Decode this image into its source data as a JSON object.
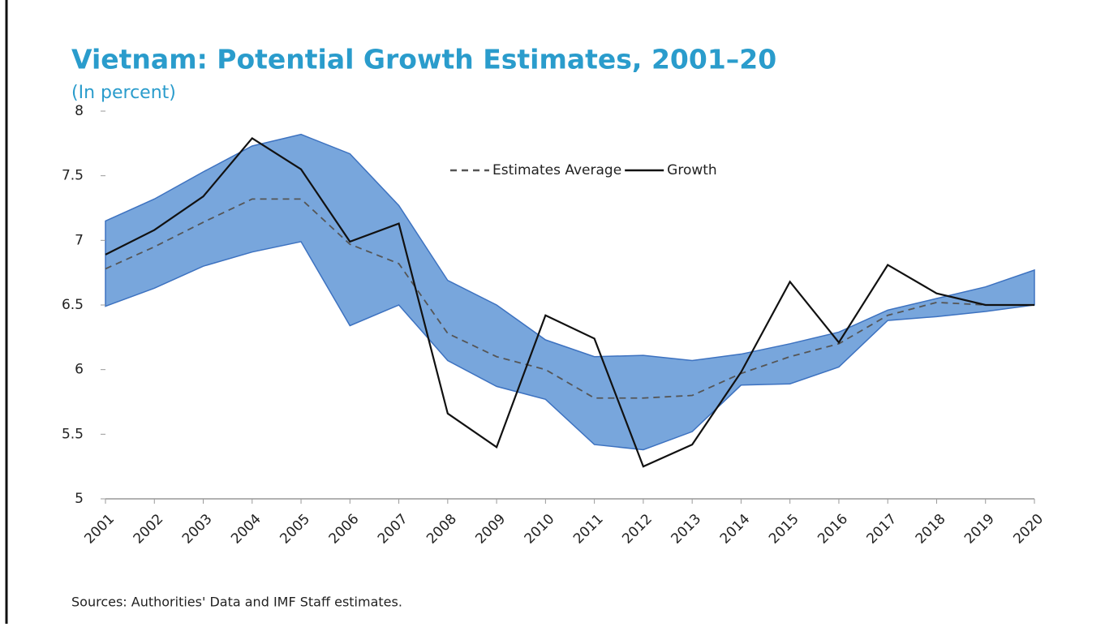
{
  "chart_data": {
    "type": "line",
    "title": "Vietnam: Potential Growth Estimates, 2001–20",
    "subtitle": "(In percent)",
    "source": "Sources: Authorities' Data and IMF Staff estimates.",
    "categories": [
      "2001",
      "2002",
      "2003",
      "2004",
      "2005",
      "2006",
      "2007",
      "2008",
      "2009",
      "2010",
      "2011",
      "2012",
      "2013",
      "2014",
      "2015",
      "2016",
      "2017",
      "2018",
      "2019",
      "2020"
    ],
    "band_color": "#78a6dc",
    "band_upper": [
      7.15,
      7.32,
      7.53,
      7.73,
      7.82,
      7.67,
      7.27,
      6.69,
      6.5,
      6.23,
      6.1,
      6.11,
      6.07,
      6.12,
      6.2,
      6.29,
      6.46,
      6.55,
      6.64,
      6.77
    ],
    "band_lower": [
      6.49,
      6.63,
      6.8,
      6.91,
      6.99,
      6.34,
      6.5,
      6.07,
      5.87,
      5.77,
      5.42,
      5.38,
      5.52,
      5.88,
      5.89,
      6.02,
      6.38,
      6.41,
      6.45,
      6.5
    ],
    "series": [
      {
        "name": "Estimates Average",
        "color": "#555555",
        "dash": true,
        "values": [
          6.78,
          6.95,
          7.14,
          7.32,
          7.32,
          6.97,
          6.82,
          6.28,
          6.1,
          6.0,
          5.78,
          5.78,
          5.8,
          5.97,
          6.1,
          6.2,
          6.42,
          6.52,
          6.5,
          6.5
        ]
      },
      {
        "name": "Growth",
        "color": "#111111",
        "dash": false,
        "values": [
          6.89,
          7.08,
          7.34,
          7.79,
          7.55,
          6.99,
          7.13,
          5.66,
          5.4,
          6.42,
          6.24,
          5.25,
          5.42,
          5.98,
          6.68,
          6.21,
          6.81,
          6.59,
          6.5,
          6.5
        ]
      }
    ],
    "ylim": [
      5,
      8
    ],
    "yticks": [
      5,
      5.5,
      6,
      6.5,
      7,
      7.5,
      8
    ]
  }
}
